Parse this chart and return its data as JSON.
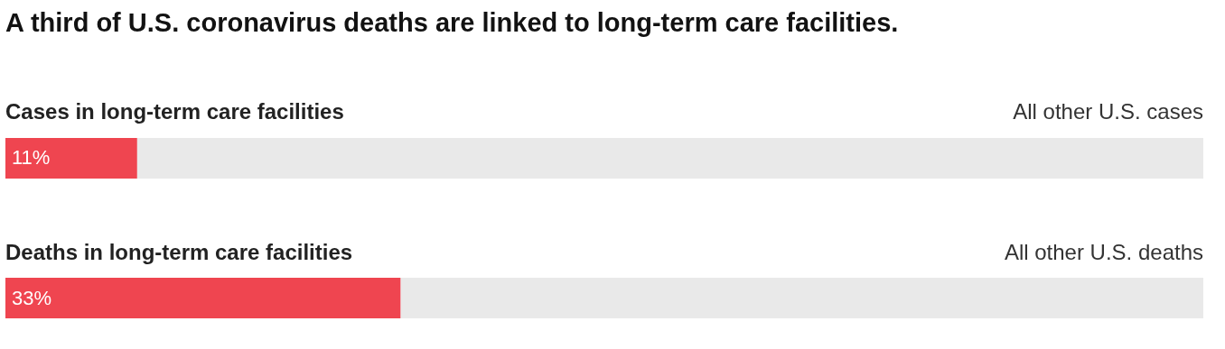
{
  "chart_data": {
    "type": "bar",
    "orientation": "horizontal",
    "stacked": true,
    "title": "A third of U.S. coronavirus deaths are linked to long-term care facilities.",
    "categories": [
      "Cases in long-term care facilities",
      "Deaths in long-term care facilities"
    ],
    "series": [
      {
        "color": "#ef4550",
        "values": [
          11,
          33
        ],
        "value_labels": [
          "11%",
          "33%"
        ]
      },
      {
        "color": "#e9e9e9",
        "values": [
          89,
          67
        ]
      }
    ],
    "xlim": [
      0,
      100
    ],
    "tick_labels": false,
    "annotations": [
      {
        "text": "All other U.S. cases",
        "x": 100,
        "y": "Cases in long-term care facilities"
      },
      {
        "text": "All other U.S. deaths",
        "x": 100,
        "y": "Deaths in long-term care facilities"
      }
    ]
  }
}
